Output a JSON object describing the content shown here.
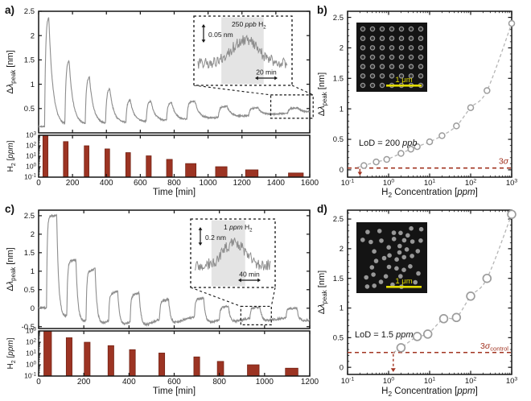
{
  "figure": {
    "letters": {
      "a": "a)",
      "b": "b)",
      "c": "c)",
      "d": "d)"
    }
  },
  "colors": {
    "trace": "#8d8d8d",
    "bar": "#9c3423",
    "bar_edge": "#6f2012",
    "red": "#a23422",
    "fit": "#b5b5b5",
    "marker": "#9c9c9c",
    "axis": "#151515",
    "shade": "#e4e4e4",
    "sem_bg": "#141414",
    "sem_dot": "#989898",
    "scalebar": "#e3dc00"
  },
  "chart_data": [
    {
      "id": "a-response",
      "type": "line",
      "panel": "a",
      "ylabel_parts": [
        {
          "t": "Δ"
        },
        {
          "t": "λ",
          "i": true
        },
        {
          "t": "peak",
          "sub": true
        },
        {
          "t": " [nm]"
        }
      ],
      "xlim": [
        0,
        1600
      ],
      "xtick_step": 200,
      "ylim": [
        0,
        2.5
      ],
      "yticks": [
        0.5,
        1,
        1.5,
        2,
        2.5
      ],
      "baseline": {
        "start": 0.13,
        "drift": 0.3,
        "exp": 1.2
      },
      "noise": 0.015,
      "rise": 6,
      "fall": 24,
      "undershoot": 0,
      "undershoot_tau": 60,
      "pulses": [
        {
          "t": 35,
          "dur": 25,
          "amp": 2.28
        },
        {
          "t": 155,
          "dur": 25,
          "amp": 1.33
        },
        {
          "t": 275,
          "dur": 25,
          "amp": 0.98
        },
        {
          "t": 395,
          "dur": 25,
          "amp": 0.72
        },
        {
          "t": 515,
          "dur": 26,
          "amp": 0.46
        },
        {
          "t": 635,
          "dur": 28,
          "amp": 0.42
        },
        {
          "t": 755,
          "dur": 30,
          "amp": 0.36
        },
        {
          "t": 875,
          "dur": 48,
          "amp": 0.36
        },
        {
          "t": 1060,
          "dur": 52,
          "amp": 0.22
        },
        {
          "t": 1240,
          "dur": 56,
          "amp": 0.15
        },
        {
          "t": 1470,
          "dur": 60,
          "amp": 0.1
        }
      ],
      "inset": {
        "label_parts": [
          {
            "t": "250 "
          },
          {
            "t": "ppb",
            "i": true
          },
          {
            "t": " H"
          },
          {
            "t": "2",
            "sub": true
          }
        ],
        "vscale": "0.05 nm",
        "hscale": "20 min"
      },
      "zoom_window": {
        "t": [
          1370,
          1620
        ],
        "y": [
          0.3,
          0.78
        ]
      }
    },
    {
      "id": "a-h2",
      "type": "bar",
      "panel": "a",
      "ylabel_parts": [
        {
          "t": "H"
        },
        {
          "t": "2",
          "sub": true
        },
        {
          "t": " ["
        },
        {
          "t": "ppm",
          "i": true
        },
        {
          "t": "]"
        }
      ],
      "xlabel_parts": [
        {
          "t": "Time [min]"
        }
      ],
      "xlim": [
        0,
        1600
      ],
      "xtick_step": 200,
      "ylog_exponents": [
        3,
        2,
        1,
        0,
        -1
      ],
      "bars": [
        {
          "t": 40,
          "ppm": 1000,
          "w": 30
        },
        {
          "t": 160,
          "ppm": 250,
          "w": 28
        },
        {
          "t": 283,
          "ppm": 100,
          "w": 28
        },
        {
          "t": 405,
          "ppm": 50,
          "w": 28
        },
        {
          "t": 528,
          "ppm": 22,
          "w": 28
        },
        {
          "t": 650,
          "ppm": 11,
          "w": 30
        },
        {
          "t": 772,
          "ppm": 5,
          "w": 34
        },
        {
          "t": 898,
          "ppm": 2,
          "w": 62
        },
        {
          "t": 1078,
          "ppm": 1,
          "w": 68
        },
        {
          "t": 1258,
          "ppm": 0.5,
          "w": 74
        },
        {
          "t": 1518,
          "ppm": 0.25,
          "w": 88
        }
      ]
    },
    {
      "id": "b-calibration",
      "type": "scatter",
      "panel": "b",
      "xlabel_parts": [
        {
          "t": "H"
        },
        {
          "t": "2",
          "sub": true
        },
        {
          "t": " Concentration ["
        },
        {
          "t": "ppm",
          "i": true
        },
        {
          "t": "]"
        }
      ],
      "ylabel_parts": [
        {
          "t": "Δ"
        },
        {
          "t": "λ",
          "i": true
        },
        {
          "t": "peak",
          "sub": true
        },
        {
          "t": " [nm]"
        }
      ],
      "xlog_range": [
        -1,
        3
      ],
      "ylim": [
        -0.12,
        2.6
      ],
      "yticks": [
        0,
        0.5,
        1,
        1.5,
        2,
        2.5
      ],
      "points": [
        [
          0.25,
          0.07
        ],
        [
          0.5,
          0.13
        ],
        [
          0.9,
          0.17
        ],
        [
          2,
          0.27
        ],
        [
          3.5,
          0.34
        ],
        [
          5,
          0.38
        ],
        [
          10,
          0.46
        ],
        [
          20,
          0.56
        ],
        [
          45,
          0.72
        ],
        [
          100,
          1.02
        ],
        [
          250,
          1.3
        ],
        [
          1000,
          2.4
        ]
      ],
      "fit_start": [
        0.17,
        0.04
      ],
      "threshold": {
        "y": 0.03,
        "label_parts": [
          {
            "t": "3"
          },
          {
            "t": "σ",
            "i": true
          }
        ],
        "arrow_x": 0.2,
        "vertical_drop": false
      },
      "lod_parts": [
        {
          "t": "LoD = 200 "
        },
        {
          "t": "ppb",
          "i": true
        }
      ],
      "inset": {
        "kind": "ordered",
        "scale_label": "1 μm"
      }
    },
    {
      "id": "c-response",
      "type": "line",
      "panel": "c",
      "ylabel_parts": [
        {
          "t": "Δ"
        },
        {
          "t": "λ",
          "i": true
        },
        {
          "t": "peak",
          "sub": true
        },
        {
          "t": " [nm]"
        }
      ],
      "xlim": [
        0,
        1200
      ],
      "xtick_step": 200,
      "ylim": [
        -0.55,
        2.65
      ],
      "yticks": [
        -0.5,
        0,
        0.5,
        1,
        1.5,
        2,
        2.5
      ],
      "baseline": {
        "start": 0.02,
        "drift": -0.24,
        "exp": 1.0
      },
      "noise": 0.028,
      "rise": 3,
      "fall": 9,
      "undershoot": 0.38,
      "undershoot_tau": 90,
      "pulses": [
        {
          "t": 35,
          "dur": 45,
          "amp": 2.49
        },
        {
          "t": 125,
          "dur": 40,
          "amp": 1.47
        },
        {
          "t": 210,
          "dur": 40,
          "amp": 1.3
        },
        {
          "t": 310,
          "dur": 40,
          "amp": 0.7
        },
        {
          "t": 405,
          "dur": 40,
          "amp": 0.68
        },
        {
          "t": 535,
          "dur": 40,
          "amp": 0.47
        },
        {
          "t": 690,
          "dur": 40,
          "amp": 0.47
        },
        {
          "t": 800,
          "dur": 40,
          "amp": 0.31
        },
        {
          "t": 935,
          "dur": 45,
          "amp": 0.27
        },
        {
          "t": 1095,
          "dur": 48,
          "amp": 0.25
        }
      ],
      "inset": {
        "label_parts": [
          {
            "t": "1 "
          },
          {
            "t": "ppm",
            "i": true
          },
          {
            "t": " H"
          },
          {
            "t": "2",
            "sub": true
          }
        ],
        "vscale": "0.2 nm",
        "hscale": "40 min"
      },
      "zoom_window": {
        "t": [
          895,
          1030
        ],
        "y": [
          -0.45,
          0.05
        ]
      }
    },
    {
      "id": "c-h2",
      "type": "bar",
      "panel": "c",
      "ylabel_parts": [
        {
          "t": "H"
        },
        {
          "t": "2",
          "sub": true
        },
        {
          "t": " ["
        },
        {
          "t": "ppm",
          "i": true
        },
        {
          "t": "]"
        }
      ],
      "xlabel_parts": [
        {
          "t": "Time [min]"
        }
      ],
      "xlim": [
        0,
        1200
      ],
      "xtick_step": 200,
      "ylog_exponents": [
        3,
        2,
        1,
        0,
        -1
      ],
      "bars": [
        {
          "t": 40,
          "ppm": 1000,
          "w": 34
        },
        {
          "t": 135,
          "ppm": 250,
          "w": 26
        },
        {
          "t": 215,
          "ppm": 100,
          "w": 26
        },
        {
          "t": 320,
          "ppm": 50,
          "w": 26
        },
        {
          "t": 415,
          "ppm": 22,
          "w": 26
        },
        {
          "t": 545,
          "ppm": 11,
          "w": 26
        },
        {
          "t": 700,
          "ppm": 5,
          "w": 26
        },
        {
          "t": 805,
          "ppm": 2,
          "w": 28
        },
        {
          "t": 950,
          "ppm": 1,
          "w": 52
        },
        {
          "t": 1120,
          "ppm": 0.5,
          "w": 56
        }
      ]
    },
    {
      "id": "d-calibration",
      "type": "scatter",
      "panel": "d",
      "xlabel_parts": [
        {
          "t": "H"
        },
        {
          "t": "2",
          "sub": true
        },
        {
          "t": " Concentration ["
        },
        {
          "t": "ppm",
          "i": true
        },
        {
          "t": "]"
        }
      ],
      "ylabel_parts": [
        {
          "t": "Δ"
        },
        {
          "t": "λ",
          "i": true
        },
        {
          "t": "peak",
          "sub": true
        },
        {
          "t": " [nm]"
        }
      ],
      "xlog_range": [
        -1,
        3
      ],
      "ylim": [
        -0.12,
        2.65
      ],
      "yticks": [
        0,
        0.5,
        1,
        1.5,
        2,
        2.5
      ],
      "points": [
        [
          2,
          0.33
        ],
        [
          5,
          0.52
        ],
        [
          9,
          0.56
        ],
        [
          22,
          0.82
        ],
        [
          45,
          0.84
        ],
        [
          100,
          1.2
        ],
        [
          250,
          1.5
        ],
        [
          1000,
          2.58
        ]
      ],
      "fit_start": [
        1.3,
        0.25
      ],
      "threshold": {
        "y": 0.25,
        "label_parts": [
          {
            "t": "3"
          },
          {
            "t": "σ",
            "i": true
          },
          {
            "t": "control",
            "sub": true
          }
        ],
        "arrow_x": 1.3,
        "vertical_drop": true
      },
      "lod_parts": [
        {
          "t": "LoD = 1.5 "
        },
        {
          "t": "ppm",
          "i": true
        }
      ],
      "inset": {
        "kind": "random",
        "scale_label": "1 μm"
      }
    }
  ]
}
